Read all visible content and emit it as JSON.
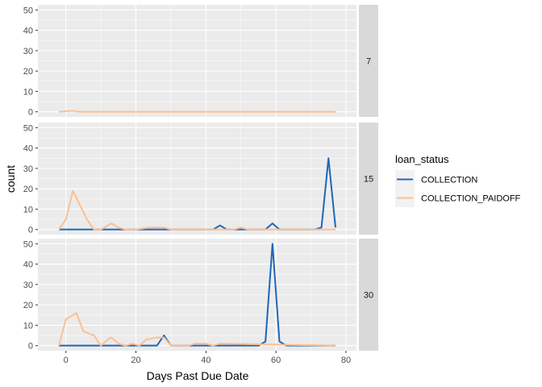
{
  "chart_data": {
    "type": "line",
    "xlabel": "Days Past Due Date",
    "ylabel": "count",
    "xlim": [
      -8,
      83
    ],
    "ylim": [
      -2.5,
      52.5
    ],
    "x_ticks": [
      0,
      20,
      40,
      60,
      80
    ],
    "y_ticks": [
      0,
      10,
      20,
      30,
      40,
      50
    ],
    "grid": true,
    "legend": {
      "title": "loan_status",
      "position": "right",
      "entries": [
        {
          "name": "COLLECTION",
          "color": "#1f66b8"
        },
        {
          "name": "COLLECTION_PAIDOFF",
          "color": "#fdbf8f"
        }
      ]
    },
    "facet_by": "strip",
    "facets": [
      {
        "label": "7",
        "series": [
          {
            "name": "COLLECTION",
            "x": [],
            "y": []
          },
          {
            "name": "COLLECTION_PAIDOFF",
            "x": [
              -2,
              2,
              4,
              77
            ],
            "y": [
              0,
              0.5,
              0,
              0
            ]
          }
        ]
      },
      {
        "label": "15",
        "series": [
          {
            "name": "COLLECTION",
            "x": [
              -2,
              42,
              44,
              46,
              57,
              59,
              61,
              71,
              73,
              75,
              77
            ],
            "y": [
              0,
              0,
              2,
              0,
              0,
              3,
              0,
              0,
              1,
              35,
              1
            ]
          },
          {
            "name": "COLLECTION_PAIDOFF",
            "x": [
              -2,
              0,
              2,
              4,
              6,
              8,
              10,
              12,
              13,
              15,
              17,
              20,
              24,
              26,
              28,
              30,
              48,
              50,
              52,
              77
            ],
            "y": [
              0,
              5,
              19,
              12,
              5,
              0,
              0,
              2,
              3,
              1,
              0,
              0,
              1,
              1,
              1,
              0,
              0,
              1,
              0,
              0
            ]
          }
        ]
      },
      {
        "label": "30",
        "series": [
          {
            "name": "COLLECTION",
            "x": [
              -2,
              26,
              28,
              30,
              55,
              57,
              59,
              61,
              63,
              77
            ],
            "y": [
              0,
              0,
              5,
              0,
              0,
              2,
              50,
              2,
              0,
              0
            ]
          },
          {
            "name": "COLLECTION_PAIDOFF",
            "x": [
              -2,
              0,
              2,
              3,
              5,
              8,
              10,
              12,
              13,
              15,
              17,
              19,
              21,
              23,
              26,
              28,
              30,
              35,
              37,
              40,
              42,
              44,
              77
            ],
            "y": [
              0,
              13,
              15,
              16,
              7,
              5,
              0,
              3,
              4,
              1,
              0,
              1,
              0,
              3,
              4,
              4,
              0,
              0,
              1,
              1,
              0,
              1,
              0
            ]
          }
        ]
      }
    ]
  }
}
